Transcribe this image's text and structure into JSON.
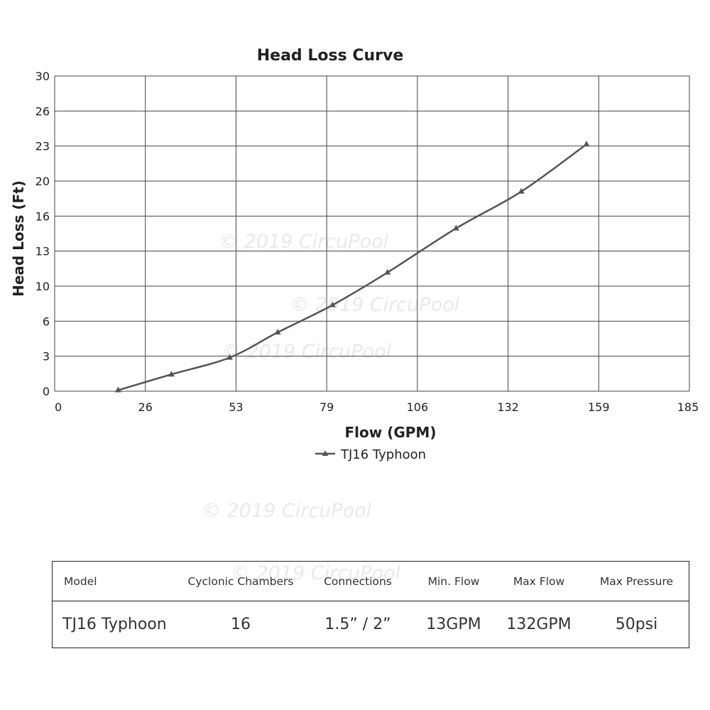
{
  "chart_data": {
    "type": "line",
    "title": "Head Loss Curve",
    "xlabel": "Flow (GPM)",
    "ylabel": "Head Loss (Ft)",
    "x_ticks": [
      "0",
      "26",
      "53",
      "79",
      "106",
      "132",
      "159",
      "185"
    ],
    "y_ticks": [
      "0",
      "3",
      "6",
      "10",
      "13",
      "16",
      "20",
      "23",
      "26",
      "30"
    ],
    "xlim": [
      0,
      185
    ],
    "ylim": [
      0,
      30
    ],
    "grid": true,
    "legend_position": "bottom-center",
    "series": [
      {
        "name": "TJ16 Typhoon",
        "color": "#555555",
        "marker": "triangle",
        "x": [
          18.5,
          34,
          51,
          65,
          81,
          97,
          117,
          136,
          155
        ],
        "y": [
          0.1,
          1.6,
          3.2,
          5.6,
          8.2,
          11.3,
          15.5,
          19.0,
          23.5
        ]
      }
    ]
  },
  "watermark": "© 2019 CircuPool",
  "spec_table": {
    "headers": [
      "Model",
      "Cyclonic Chambers",
      "Connections",
      "Min. Flow",
      "Max Flow",
      "Max Pressure"
    ],
    "row": [
      "TJ16 Typhoon",
      "16",
      "1.5” / 2”",
      "13GPM",
      "132GPM",
      "50psi"
    ]
  }
}
